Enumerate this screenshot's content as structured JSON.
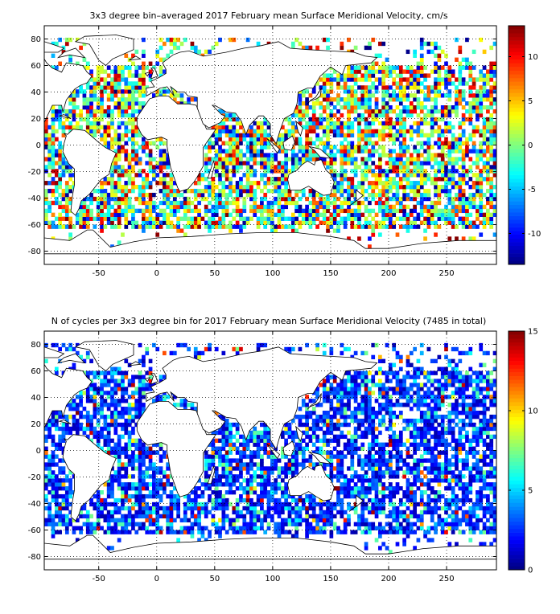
{
  "chart_data": [
    {
      "type": "heatmap",
      "title": "3x3 degree bin–averaged 2017 February mean Surface Meridional Velocity, cm/s",
      "xlabel": "",
      "ylabel": "",
      "xlim": [
        -97,
        293
      ],
      "ylim": [
        -90,
        90
      ],
      "x_ticks": [
        -50,
        0,
        50,
        100,
        150,
        200,
        250
      ],
      "y_ticks": [
        80,
        60,
        40,
        20,
        0,
        -20,
        -40,
        -60,
        -80
      ],
      "grid": true,
      "bin_size_deg": 3,
      "colorbar": {
        "colormap": "jet",
        "range": [
          -13.5,
          13.5
        ],
        "ticks": [
          10,
          5,
          0,
          -5,
          -10
        ]
      }
    },
    {
      "type": "heatmap",
      "title": "N of cycles per 3x3 degree bin for 2017 February mean Surface Meridional Velocity (7485 in total)",
      "xlabel": "",
      "ylabel": "",
      "xlim": [
        -97,
        293
      ],
      "ylim": [
        -90,
        90
      ],
      "x_ticks": [
        -50,
        0,
        50,
        100,
        150,
        200,
        250
      ],
      "y_ticks": [
        80,
        60,
        40,
        20,
        0,
        -20,
        -40,
        -60,
        -80
      ],
      "grid": true,
      "bin_size_deg": 3,
      "total_cycles": 7485,
      "colorbar": {
        "colormap": "jet",
        "range": [
          0,
          15
        ],
        "ticks": [
          15,
          10,
          5,
          0
        ]
      }
    }
  ]
}
